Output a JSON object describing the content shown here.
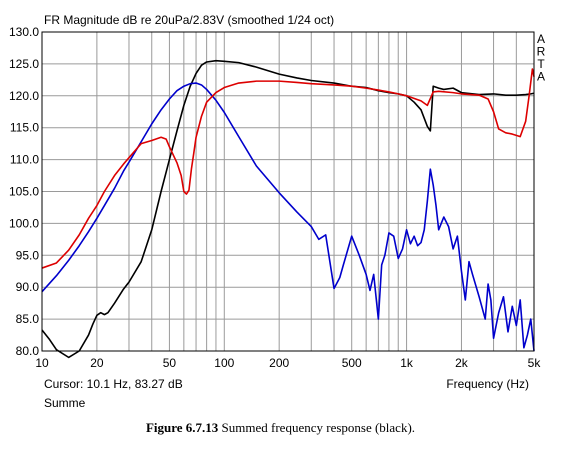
{
  "chart_data": {
    "type": "line",
    "title": "FR Magnitude dB re 20uPa/2.83V (smoothed 1/24 oct)",
    "brand": "ARTA",
    "xlabel": "Frequency (Hz)",
    "xscale": "log",
    "xlim": [
      10,
      5000
    ],
    "ylim": [
      80,
      130
    ],
    "grid": true,
    "x_tick_labels": [
      {
        "value": 10,
        "label": "10"
      },
      {
        "value": 20,
        "label": "20"
      },
      {
        "value": 50,
        "label": "50"
      },
      {
        "value": 100,
        "label": "100"
      },
      {
        "value": 200,
        "label": "200"
      },
      {
        "value": 500,
        "label": "500"
      },
      {
        "value": 1000,
        "label": "1k"
      },
      {
        "value": 2000,
        "label": "2k"
      },
      {
        "value": 5000,
        "label": "5k"
      }
    ],
    "y_tick_labels": [
      "80.0",
      "85.0",
      "90.0",
      "95.0",
      "100.0",
      "105.0",
      "110.0",
      "115.0",
      "120.0",
      "125.0",
      "130.0"
    ],
    "cursor_text": "Cursor: 10.1 Hz, 83.27 dB",
    "trace_name": "Summe",
    "series": [
      {
        "color": "#000000",
        "x": [
          10,
          11,
          12,
          14,
          16,
          18,
          19,
          20,
          21,
          22,
          23,
          25,
          28,
          30,
          35,
          40,
          45,
          50,
          55,
          60,
          65,
          70,
          75,
          80,
          90,
          100,
          120,
          150,
          200,
          250,
          300,
          400,
          500,
          600,
          700,
          800,
          900,
          1000,
          1100,
          1200,
          1300,
          1350,
          1400,
          1500,
          1600,
          1800,
          2000,
          2500,
          3000,
          3500,
          4000,
          4500,
          4800,
          5000
        ],
        "y": [
          83.3,
          81.8,
          80.2,
          79.0,
          80.0,
          82.5,
          84.2,
          85.6,
          86.0,
          85.7,
          86.0,
          87.5,
          89.7,
          90.8,
          94.0,
          99.0,
          105.0,
          110.0,
          114.5,
          118.5,
          121.5,
          123.5,
          124.8,
          125.3,
          125.5,
          125.4,
          125.2,
          124.5,
          123.4,
          122.8,
          122.4,
          122.0,
          121.5,
          121.3,
          120.8,
          120.5,
          120.3,
          120.0,
          119.0,
          117.8,
          115.2,
          114.5,
          121.5,
          121.2,
          121.0,
          121.2,
          120.5,
          120.2,
          120.3,
          120.1,
          120.1,
          120.2,
          120.3,
          120.4
        ]
      },
      {
        "color": "#dd0000",
        "x": [
          10,
          12,
          14,
          16,
          18,
          20,
          22,
          25,
          28,
          30,
          35,
          40,
          45,
          48,
          50,
          55,
          58,
          60,
          62,
          64,
          66,
          68,
          70,
          75,
          80,
          90,
          100,
          120,
          150,
          200,
          250,
          300,
          400,
          500,
          600,
          700,
          800,
          900,
          1000,
          1200,
          1300,
          1400,
          1500,
          1800,
          2000,
          2500,
          2800,
          3000,
          3200,
          3500,
          3800,
          4000,
          4200,
          4500,
          4700,
          4900,
          5000
        ],
        "y": [
          93.0,
          93.8,
          95.8,
          98.2,
          100.8,
          102.8,
          105.0,
          107.5,
          109.3,
          110.3,
          112.5,
          113.0,
          113.5,
          113.2,
          112.0,
          109.5,
          107.5,
          105.0,
          104.6,
          105.2,
          108.5,
          111.0,
          113.5,
          116.8,
          119.0,
          120.5,
          121.3,
          122.0,
          122.3,
          122.3,
          122.1,
          121.9,
          121.7,
          121.5,
          121.2,
          120.9,
          120.6,
          120.3,
          120.0,
          119.2,
          118.5,
          120.6,
          120.7,
          120.5,
          120.3,
          120.1,
          119.5,
          117.5,
          114.8,
          114.2,
          114.0,
          113.8,
          113.6,
          116.0,
          120.0,
          124.2,
          123.0
        ]
      },
      {
        "color": "#0000cc",
        "x": [
          10,
          12,
          14,
          16,
          18,
          20,
          22,
          25,
          28,
          30,
          35,
          40,
          45,
          50,
          55,
          60,
          65,
          70,
          75,
          80,
          90,
          100,
          120,
          150,
          200,
          250,
          300,
          330,
          360,
          400,
          430,
          450,
          500,
          550,
          600,
          630,
          660,
          700,
          730,
          760,
          800,
          850,
          900,
          950,
          1000,
          1050,
          1100,
          1150,
          1200,
          1250,
          1300,
          1350,
          1400,
          1450,
          1500,
          1600,
          1700,
          1800,
          1900,
          2000,
          2100,
          2200,
          2300,
          2500,
          2700,
          2800,
          2900,
          3000,
          3200,
          3400,
          3600,
          3800,
          4000,
          4200,
          4400,
          4600,
          4800,
          5000
        ],
        "y": [
          89.3,
          91.8,
          94.2,
          96.5,
          98.7,
          100.8,
          102.8,
          105.5,
          108.2,
          109.6,
          112.8,
          115.6,
          117.8,
          119.5,
          120.8,
          121.5,
          121.9,
          122.0,
          121.7,
          121.0,
          119.3,
          117.4,
          113.6,
          109.0,
          104.8,
          101.8,
          99.5,
          97.5,
          98.2,
          89.8,
          91.5,
          93.5,
          98.0,
          95.0,
          92.0,
          89.5,
          92.0,
          85.0,
          93.5,
          95.0,
          98.5,
          98.0,
          94.5,
          96.0,
          99.0,
          96.8,
          98.0,
          96.5,
          97.0,
          99.0,
          103.5,
          108.5,
          106.0,
          102.8,
          99.0,
          101.0,
          99.5,
          96.0,
          98.0,
          92.5,
          88.0,
          94.0,
          92.0,
          88.5,
          85.0,
          90.5,
          88.0,
          82.0,
          86.0,
          88.5,
          83.0,
          87.0,
          84.0,
          88.0,
          80.5,
          82.5,
          85.0,
          80.0
        ]
      }
    ]
  },
  "caption": {
    "label": "Figure 6.7.13",
    "text": " Summed frequency response (black)."
  }
}
